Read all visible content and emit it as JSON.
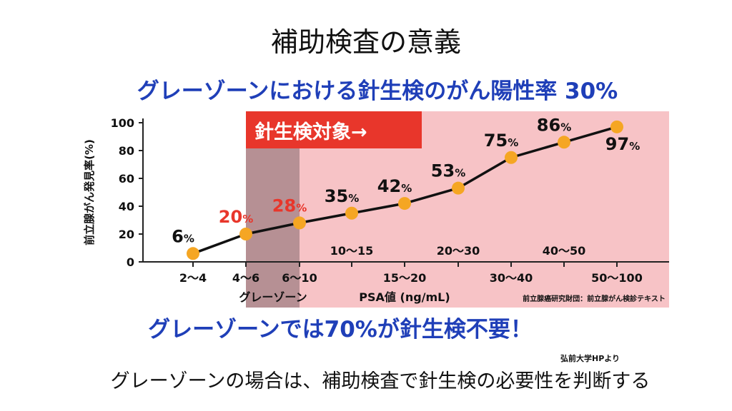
{
  "slide": {
    "title": "補助検査の意義",
    "credit": "弘前大学HPより",
    "caption": "グレーゾーンの場合は、補助検査で針生検の必要性を判断する"
  },
  "colors": {
    "headline_blue": "#1f3fb8",
    "highlight_red": "#e8362b",
    "shade_pink": "#f7c3c6",
    "gray_zone": "#a07f83",
    "marker_orange": "#f5a623",
    "label_red": "#e8362b",
    "line": "#111111"
  },
  "chart_data": {
    "type": "line",
    "title": "グレーゾーンにおける針生検のがん陽性率 30%",
    "footer": "グレーゾーンでは70%が針生検不要！",
    "banner": "針生検対象→",
    "gray_zone_label": "グレーゾーン",
    "xlabel": "PSA値 (ng/mL)",
    "ylabel": "前立腺がん発見率(%)",
    "source": "前立腺癌研究財団：前立腺がん検診テキスト",
    "ylim": [
      0,
      100
    ],
    "yticks": [
      "0",
      "20",
      "40",
      "60",
      "80",
      "100"
    ],
    "categories": [
      "2〜4",
      "4〜6",
      "6〜10",
      "10〜15",
      "15〜20",
      "20〜30",
      "30〜40",
      "40〜50",
      "50〜100"
    ],
    "values": [
      6,
      20,
      28,
      35,
      42,
      53,
      75,
      86,
      97
    ],
    "value_labels": [
      "6",
      "20",
      "28",
      "35",
      "42",
      "53",
      "75",
      "86",
      "97"
    ],
    "percent_sign": "%",
    "red_labels": [
      1,
      2
    ],
    "gray_zone_categories": [
      1,
      2
    ],
    "shaded_from_category": 1,
    "grid": false
  }
}
